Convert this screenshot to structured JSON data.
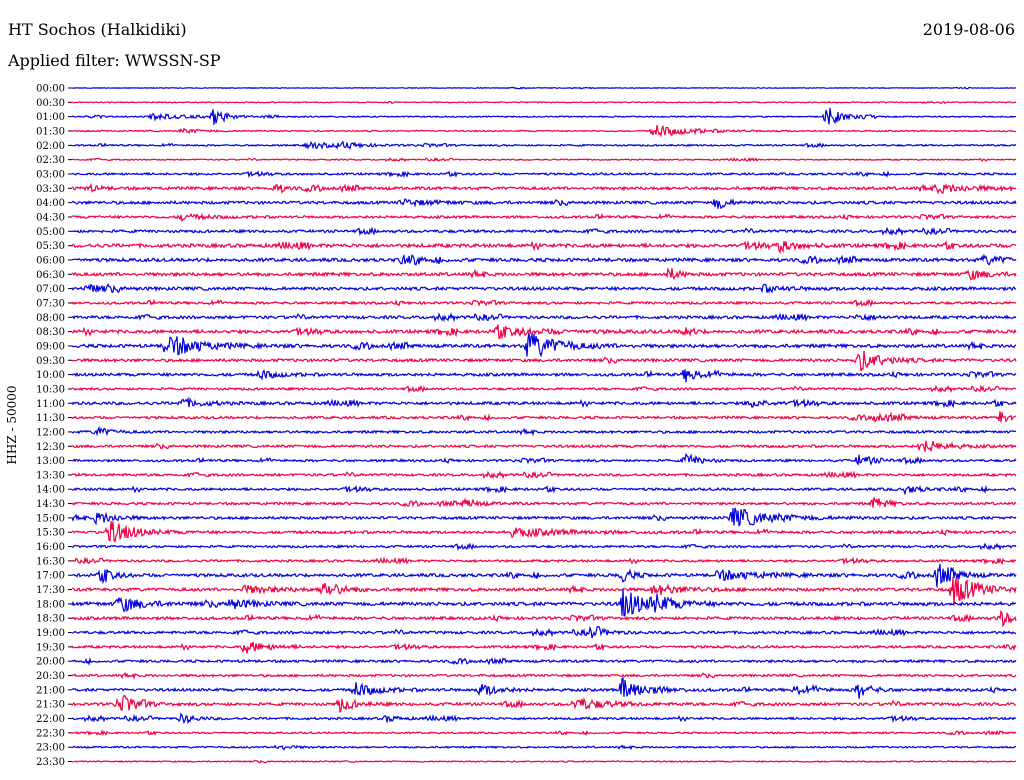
{
  "header": {
    "station": "HT Sochos (Halkidiki)",
    "date": "2019-08-06",
    "filter": "Applied filter: WWSSN-SP"
  },
  "chart_data": {
    "type": "line",
    "title": "HT Sochos (Halkidiki)",
    "subtitle": "Applied filter: WWSSN-SP",
    "ylabel": "HHZ - 50000",
    "xlabel": "",
    "colors": [
      "#0000dd",
      "#ee0044"
    ],
    "rows": [
      "00:00",
      "00:30",
      "01:00",
      "01:30",
      "02:00",
      "02:30",
      "03:00",
      "03:30",
      "04:00",
      "04:30",
      "05:00",
      "05:30",
      "06:00",
      "06:30",
      "07:00",
      "07:30",
      "08:00",
      "08:30",
      "09:00",
      "09:30",
      "10:00",
      "10:30",
      "11:00",
      "11:30",
      "12:00",
      "12:30",
      "13:00",
      "13:30",
      "14:00",
      "14:30",
      "15:00",
      "15:30",
      "16:00",
      "16:30",
      "17:00",
      "17:30",
      "18:00",
      "18:30",
      "19:00",
      "19:30",
      "20:00",
      "20:30",
      "21:00",
      "21:30",
      "22:00",
      "22:30",
      "23:00",
      "23:30"
    ],
    "noise_level": [
      0.3,
      0.5,
      0.6,
      0.6,
      0.8,
      0.6,
      1.0,
      1.4,
      1.4,
      1.2,
      1.3,
      1.7,
      1.6,
      1.6,
      1.5,
      1.2,
      1.4,
      1.6,
      1.6,
      1.4,
      1.4,
      1.1,
      1.4,
      1.2,
      1.2,
      1.2,
      1.1,
      1.2,
      1.2,
      1.2,
      1.3,
      1.3,
      1.1,
      1.1,
      1.5,
      1.5,
      1.7,
      1.4,
      1.3,
      1.2,
      1.2,
      1.1,
      1.3,
      1.4,
      1.1,
      0.8,
      0.8,
      0.6
    ],
    "events": [
      {
        "row": 2,
        "minute": 24.0,
        "amp": 10,
        "dur": 1.0
      },
      {
        "row": 2,
        "minute": 4.5,
        "amp": 8,
        "dur": 0.8
      },
      {
        "row": 2,
        "minute": 2.5,
        "amp": 3,
        "dur": 2.5
      },
      {
        "row": 3,
        "minute": 18.5,
        "amp": 6,
        "dur": 2.5
      },
      {
        "row": 3,
        "minute": 3.5,
        "amp": 2,
        "dur": 1.5
      },
      {
        "row": 4,
        "minute": 7.5,
        "amp": 3,
        "dur": 2.0
      },
      {
        "row": 4,
        "minute": 8.5,
        "amp": 2,
        "dur": 1.5
      },
      {
        "row": 7,
        "minute": 6.5,
        "amp": 5,
        "dur": 0.6
      },
      {
        "row": 7,
        "minute": 27.5,
        "amp": 4,
        "dur": 2.5
      },
      {
        "row": 7,
        "minute": 0.5,
        "amp": 3,
        "dur": 0.8
      },
      {
        "row": 8,
        "minute": 20.5,
        "amp": 8,
        "dur": 0.6
      },
      {
        "row": 8,
        "minute": 10.5,
        "amp": 3,
        "dur": 2.0
      },
      {
        "row": 9,
        "minute": 3.5,
        "amp": 3,
        "dur": 1.5
      },
      {
        "row": 11,
        "minute": 22.5,
        "amp": 5,
        "dur": 1.2
      },
      {
        "row": 12,
        "minute": 10.5,
        "amp": 4,
        "dur": 1.2
      },
      {
        "row": 12,
        "minute": 29.0,
        "amp": 4,
        "dur": 1.5
      },
      {
        "row": 13,
        "minute": 19.0,
        "amp": 6,
        "dur": 0.6
      },
      {
        "row": 13,
        "minute": 28.5,
        "amp": 5,
        "dur": 1.2
      },
      {
        "row": 14,
        "minute": 0.5,
        "amp": 4,
        "dur": 1.2
      },
      {
        "row": 14,
        "minute": 22.0,
        "amp": 3,
        "dur": 1.5
      },
      {
        "row": 16,
        "minute": 25.0,
        "amp": 3,
        "dur": 1.0
      },
      {
        "row": 17,
        "minute": 13.5,
        "amp": 4,
        "dur": 3.0
      },
      {
        "row": 17,
        "minute": 19.5,
        "amp": 5,
        "dur": 0.5
      },
      {
        "row": 18,
        "minute": 3.0,
        "amp": 12,
        "dur": 2.0
      },
      {
        "row": 18,
        "minute": 14.5,
        "amp": 13,
        "dur": 2.0
      },
      {
        "row": 19,
        "minute": 25.0,
        "amp": 11,
        "dur": 1.5
      },
      {
        "row": 20,
        "minute": 19.5,
        "amp": 7,
        "dur": 1.0
      },
      {
        "row": 20,
        "minute": 6.0,
        "amp": 4,
        "dur": 1.2
      },
      {
        "row": 22,
        "minute": 3.5,
        "amp": 4,
        "dur": 1.5
      },
      {
        "row": 22,
        "minute": 21.5,
        "amp": 4,
        "dur": 1.2
      },
      {
        "row": 23,
        "minute": 29.5,
        "amp": 7,
        "dur": 0.5
      },
      {
        "row": 23,
        "minute": 25.5,
        "amp": 3,
        "dur": 1.5
      },
      {
        "row": 24,
        "minute": 0.8,
        "amp": 5,
        "dur": 0.8
      },
      {
        "row": 25,
        "minute": 27.0,
        "amp": 7,
        "dur": 1.5
      },
      {
        "row": 26,
        "minute": 19.5,
        "amp": 6,
        "dur": 1.0
      },
      {
        "row": 26,
        "minute": 25.0,
        "amp": 5,
        "dur": 1.2
      },
      {
        "row": 28,
        "minute": 26.5,
        "amp": 4,
        "dur": 1.0
      },
      {
        "row": 29,
        "minute": 25.5,
        "amp": 6,
        "dur": 0.8
      },
      {
        "row": 29,
        "minute": 12.5,
        "amp": 4,
        "dur": 1.0
      },
      {
        "row": 30,
        "minute": 21.0,
        "amp": 10,
        "dur": 2.5
      },
      {
        "row": 30,
        "minute": 0.8,
        "amp": 6,
        "dur": 1.2
      },
      {
        "row": 31,
        "minute": 1.2,
        "amp": 12,
        "dur": 1.5
      },
      {
        "row": 31,
        "minute": 14.0,
        "amp": 4,
        "dur": 3.5
      },
      {
        "row": 34,
        "minute": 1.0,
        "amp": 6,
        "dur": 0.8
      },
      {
        "row": 34,
        "minute": 17.5,
        "amp": 8,
        "dur": 0.6
      },
      {
        "row": 34,
        "minute": 20.5,
        "amp": 5,
        "dur": 2.5
      },
      {
        "row": 34,
        "minute": 27.5,
        "amp": 10,
        "dur": 1.2
      },
      {
        "row": 35,
        "minute": 28.0,
        "amp": 16,
        "dur": 1.5
      },
      {
        "row": 35,
        "minute": 8.0,
        "amp": 9,
        "dur": 1.0
      },
      {
        "row": 35,
        "minute": 18.5,
        "amp": 5,
        "dur": 2.0
      },
      {
        "row": 35,
        "minute": 5.5,
        "amp": 4,
        "dur": 2.0
      },
      {
        "row": 36,
        "minute": 17.5,
        "amp": 15,
        "dur": 1.5
      },
      {
        "row": 36,
        "minute": 1.5,
        "amp": 8,
        "dur": 1.5
      },
      {
        "row": 36,
        "minute": 5.0,
        "amp": 5,
        "dur": 1.5
      },
      {
        "row": 36,
        "minute": 18.5,
        "amp": 6,
        "dur": 1.5
      },
      {
        "row": 37,
        "minute": 29.5,
        "amp": 8,
        "dur": 0.8
      },
      {
        "row": 38,
        "minute": 16.5,
        "amp": 5,
        "dur": 1.0
      },
      {
        "row": 39,
        "minute": 5.5,
        "amp": 6,
        "dur": 1.5
      },
      {
        "row": 42,
        "minute": 9.0,
        "amp": 7,
        "dur": 1.5
      },
      {
        "row": 42,
        "minute": 13.0,
        "amp": 6,
        "dur": 1.2
      },
      {
        "row": 42,
        "minute": 17.5,
        "amp": 12,
        "dur": 1.5
      },
      {
        "row": 42,
        "minute": 23.0,
        "amp": 5,
        "dur": 1.0
      },
      {
        "row": 42,
        "minute": 25.0,
        "amp": 8,
        "dur": 0.8
      },
      {
        "row": 43,
        "minute": 1.5,
        "amp": 9,
        "dur": 1.0
      },
      {
        "row": 43,
        "minute": 8.5,
        "amp": 7,
        "dur": 1.0
      },
      {
        "row": 43,
        "minute": 16.0,
        "amp": 6,
        "dur": 2.0
      },
      {
        "row": 44,
        "minute": 3.5,
        "amp": 5,
        "dur": 0.8
      },
      {
        "row": 44,
        "minute": 10.0,
        "amp": 3,
        "dur": 0.8
      },
      {
        "row": 46,
        "minute": 6.5,
        "amp": 3,
        "dur": 1.0
      }
    ]
  }
}
